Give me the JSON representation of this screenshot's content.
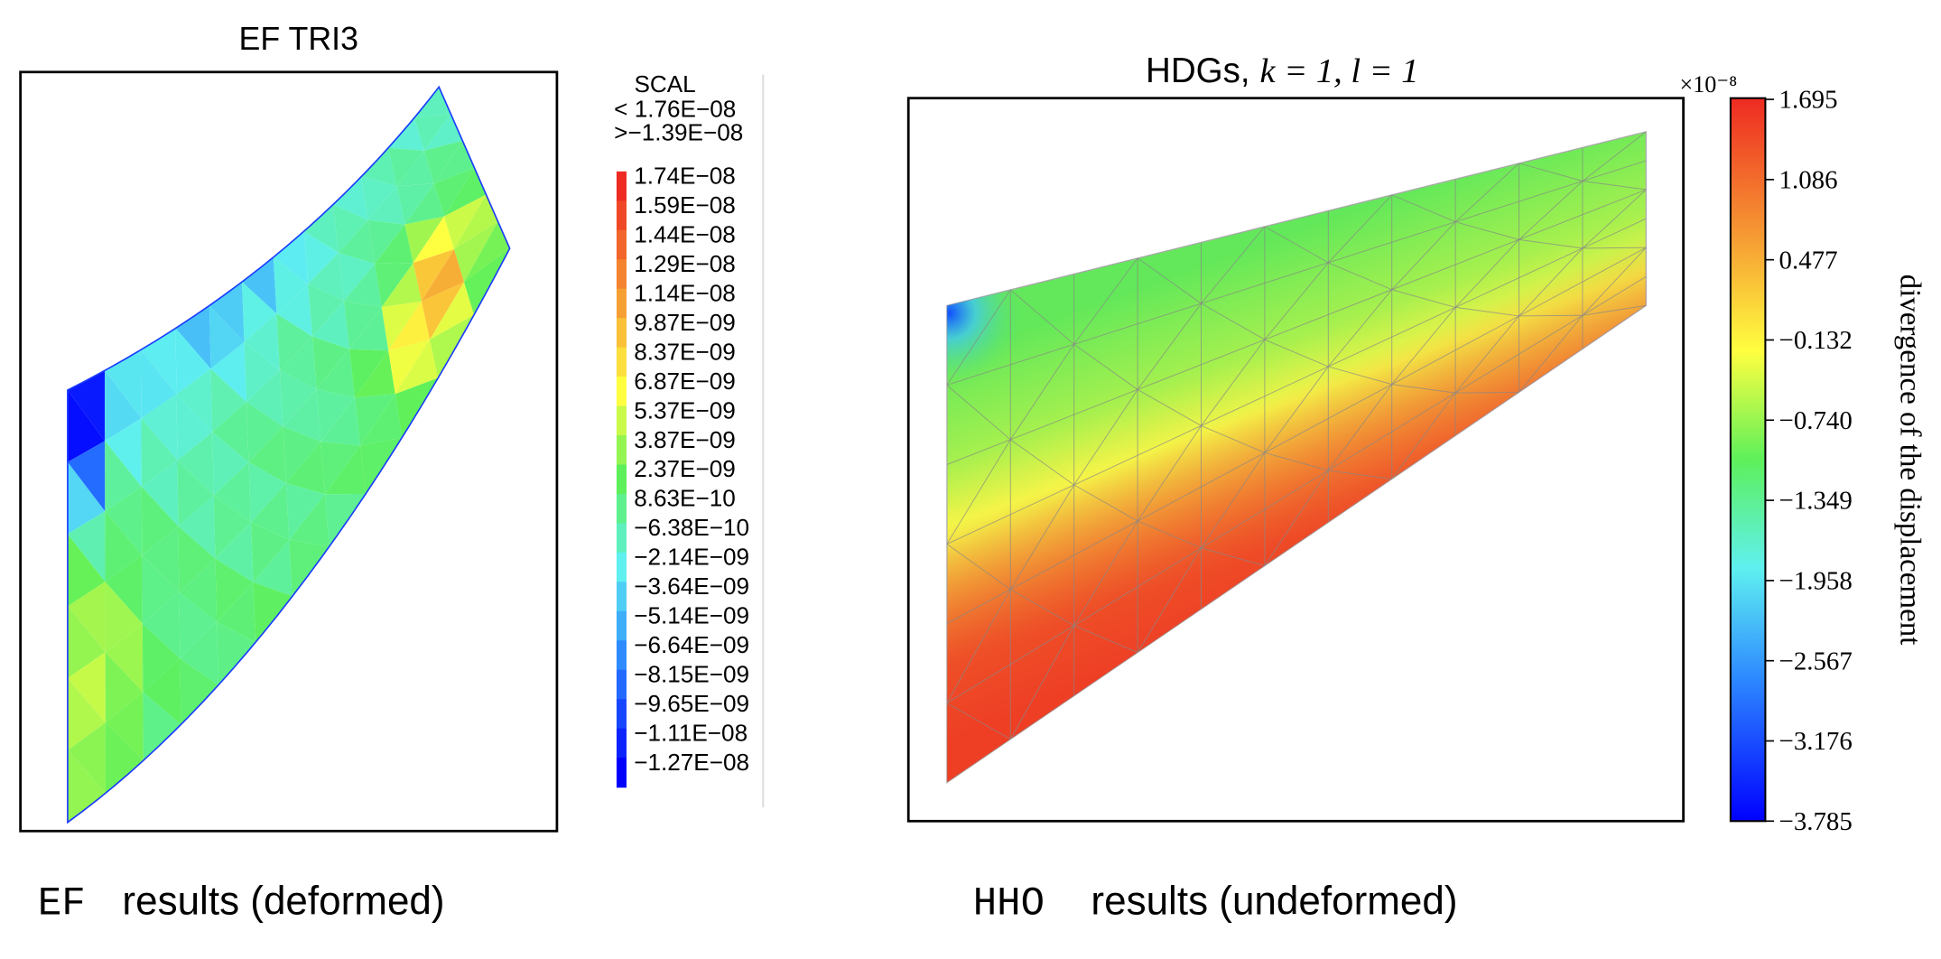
{
  "left_panel": {
    "title": "EF TRI3",
    "legend": {
      "title": "SCAL",
      "max_label": "< 1.76E−08",
      "min_label": ">−1.39E−08",
      "entries": [
        "1.74E−08",
        "1.59E−08",
        "1.44E−08",
        "1.29E−08",
        "1.14E−08",
        "9.87E−09",
        "8.37E−09",
        "6.87E−09",
        "5.37E−09",
        "3.87E−09",
        "2.37E−09",
        "8.63E−10",
        "−6.38E−10",
        "−2.14E−09",
        "−3.64E−09",
        "−5.14E−09",
        "−6.64E−09",
        "−8.15E−09",
        "−9.65E−09",
        "−1.11E−08",
        "−1.27E−08"
      ]
    },
    "caption_code": "EF",
    "caption_text": "results (deformed)"
  },
  "right_panel": {
    "title": "HDGs,",
    "title_math": "k = 1, l = 1",
    "colorbar": {
      "multiplier": "×10⁻⁸",
      "ticks": [
        "1.695",
        "1.086",
        "0.477",
        "−0.132",
        "−0.740",
        "−1.349",
        "−1.958",
        "−2.567",
        "−3.176",
        "−3.785"
      ],
      "label": "divergence of the displacement"
    },
    "caption_code": "HHO",
    "caption_text": "results (undeformed)"
  }
}
